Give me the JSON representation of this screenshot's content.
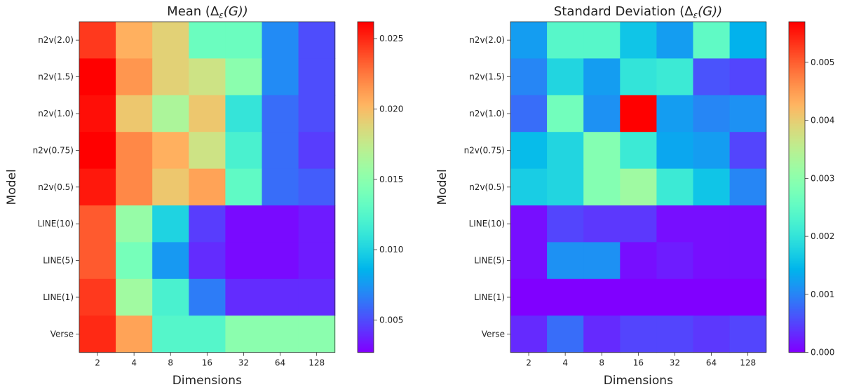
{
  "chart_data": [
    {
      "type": "heatmap",
      "title_prefix": "Mean (",
      "title_symbol": "Δ",
      "title_sub": "ε",
      "title_suffix": "(G))",
      "xlabel": "Dimensions",
      "ylabel": "Model",
      "x_categories": [
        "2",
        "4",
        "8",
        "16",
        "32",
        "64",
        "128"
      ],
      "y_categories": [
        "n2v(2.0)",
        "n2v(1.5)",
        "n2v(1.0)",
        "n2v(0.75)",
        "n2v(0.5)",
        "LINE(10)",
        "LINE(5)",
        "LINE(1)",
        "Verse"
      ],
      "colormap": "rainbow",
      "vmin": 0.0027,
      "vmax": 0.0262,
      "colorbar_ticks": [
        "0.005",
        "0.010",
        "0.015",
        "0.020",
        "0.025"
      ],
      "values": [
        [
          0.0245,
          0.0205,
          0.019,
          0.0135,
          0.0135,
          0.007,
          0.005
        ],
        [
          0.0262,
          0.0215,
          0.019,
          0.018,
          0.015,
          0.007,
          0.005
        ],
        [
          0.0258,
          0.0195,
          0.0165,
          0.0195,
          0.011,
          0.006,
          0.005
        ],
        [
          0.0262,
          0.022,
          0.0205,
          0.018,
          0.012,
          0.006,
          0.0045
        ],
        [
          0.0255,
          0.022,
          0.0195,
          0.021,
          0.013,
          0.006,
          0.0055
        ],
        [
          0.0235,
          0.0155,
          0.01,
          0.0045,
          0.003,
          0.003,
          0.0035
        ],
        [
          0.0235,
          0.014,
          0.0075,
          0.004,
          0.003,
          0.003,
          0.0035
        ],
        [
          0.0245,
          0.016,
          0.012,
          0.0065,
          0.004,
          0.004,
          0.004
        ],
        [
          0.025,
          0.021,
          0.0125,
          0.0125,
          0.015,
          0.015,
          0.015
        ]
      ]
    },
    {
      "type": "heatmap",
      "title_prefix": "Standard Deviation (",
      "title_symbol": "Δ",
      "title_sub": "ε",
      "title_suffix": "(G))",
      "xlabel": "Dimensions",
      "ylabel": "Model",
      "x_categories": [
        "2",
        "4",
        "8",
        "16",
        "32",
        "64",
        "128"
      ],
      "y_categories": [
        "n2v(2.0)",
        "n2v(1.5)",
        "n2v(1.0)",
        "n2v(0.75)",
        "n2v(0.5)",
        "LINE(10)",
        "LINE(5)",
        "LINE(1)",
        "Verse"
      ],
      "colormap": "rainbow",
      "vmin": 0.0,
      "vmax": 0.0057,
      "colorbar_ticks": [
        "0.000",
        "0.001",
        "0.002",
        "0.003",
        "0.004",
        "0.005"
      ],
      "values": [
        [
          0.0012,
          0.0024,
          0.0024,
          0.0016,
          0.0012,
          0.0025,
          0.0014
        ],
        [
          0.001,
          0.0018,
          0.0012,
          0.002,
          0.0021,
          0.0006,
          0.0005
        ],
        [
          0.0008,
          0.0027,
          0.0011,
          0.0057,
          0.0012,
          0.001,
          0.0011
        ],
        [
          0.0015,
          0.0018,
          0.0029,
          0.0021,
          0.0013,
          0.0012,
          0.0005
        ],
        [
          0.0017,
          0.0018,
          0.0029,
          0.0032,
          0.0021,
          0.0016,
          0.001
        ],
        [
          0.0001,
          0.0005,
          0.0004,
          0.0004,
          0.0001,
          0.0001,
          0.0001
        ],
        [
          0.0001,
          0.0011,
          0.0011,
          0.0001,
          0.0002,
          0.0001,
          0.0001
        ],
        [
          0.0,
          0.0,
          0.0,
          0.0,
          0.0,
          0.0,
          0.0
        ],
        [
          0.0003,
          0.0008,
          0.0003,
          0.0005,
          0.0005,
          0.0004,
          0.0005
        ]
      ]
    }
  ]
}
